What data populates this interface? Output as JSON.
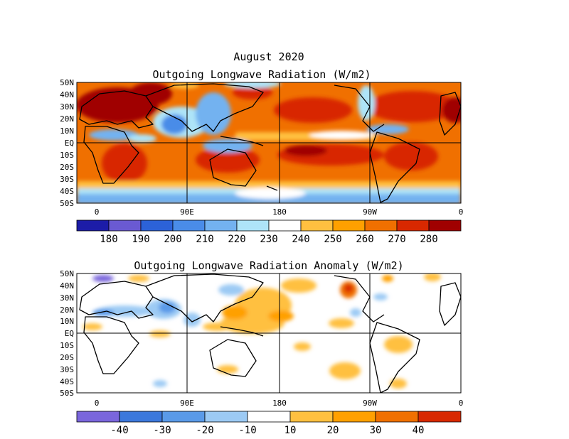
{
  "header": {
    "month_title": "August 2020",
    "olr_title": "Outgoing Longwave Radiation (W/m2)",
    "anomaly_title": "Outgoing Longwave Radiation Anomaly (W/m2)"
  },
  "axes": {
    "lat_labels": [
      "50N",
      "40N",
      "30N",
      "20N",
      "10N",
      "EQ",
      "10S",
      "20S",
      "30S",
      "40S",
      "50S"
    ],
    "lon_labels": [
      "0",
      "90E",
      "180",
      "90W",
      "0"
    ],
    "lat_range": [
      -50,
      50
    ],
    "lon_range": [
      -10,
      350
    ]
  },
  "chart_data": [
    {
      "type": "heatmap",
      "title": "Outgoing Longwave Radiation (W/m2)",
      "units": "W/m2",
      "colorbar": {
        "tick_labels": [
          "180",
          "190",
          "200",
          "210",
          "220",
          "230",
          "240",
          "250",
          "260",
          "270",
          "280"
        ],
        "colors": [
          "#1c1ca8",
          "#6a5ad2",
          "#2c62d8",
          "#4a8ce8",
          "#73b2f0",
          "#aee4f8",
          "#ffffff",
          "#ffc040",
          "#ffa000",
          "#f07000",
          "#d82800",
          "#a00000"
        ]
      }
    },
    {
      "type": "heatmap",
      "title": "Outgoing Longwave Radiation Anomaly (W/m2)",
      "units": "W/m2",
      "colorbar": {
        "tick_labels": [
          "-40",
          "-30",
          "-20",
          "-10",
          "10",
          "20",
          "30",
          "40"
        ],
        "colors": [
          "#7a66dc",
          "#3c78dc",
          "#5a9ae8",
          "#9ccaf4",
          "#ffffff",
          "#ffc040",
          "#ffa000",
          "#f07000",
          "#d82800"
        ]
      }
    }
  ]
}
